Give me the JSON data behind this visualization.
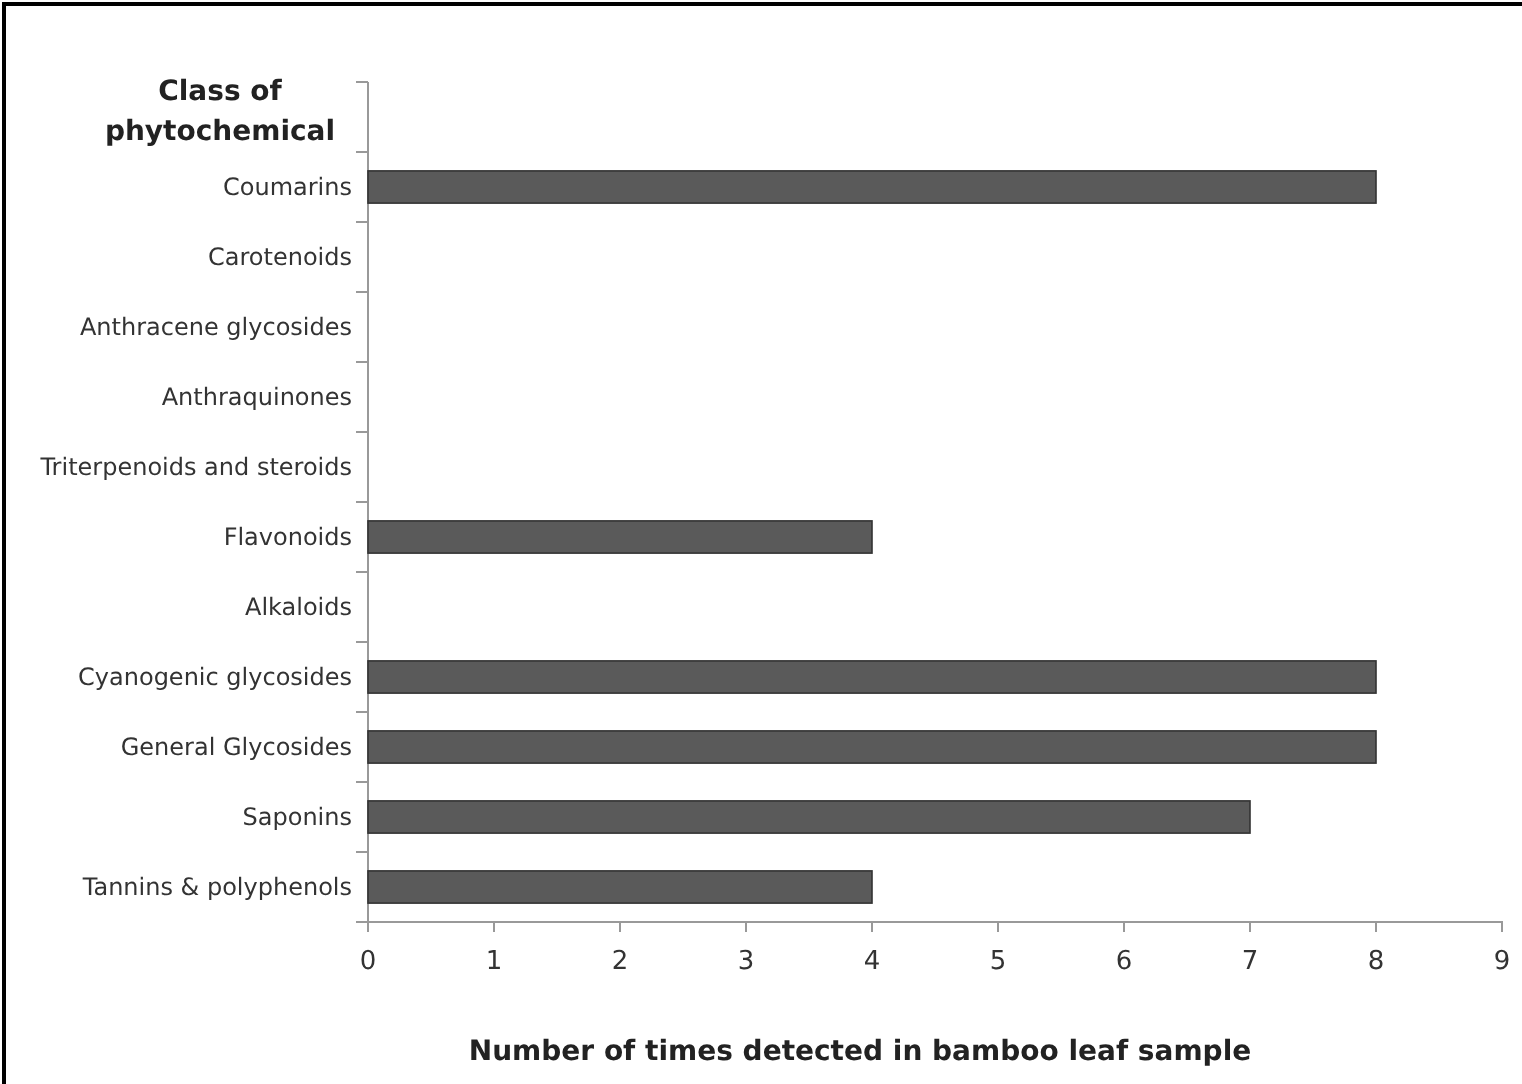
{
  "chart_data": {
    "type": "bar",
    "orientation": "horizontal",
    "ylabel": "Class of phytochemical",
    "xlabel": "Number of times detected in bamboo leaf sample",
    "categories": [
      "Coumarins",
      "Carotenoids",
      "Anthracene glycosides",
      "Anthraquinones",
      "Triterpenoids and steroids",
      "Flavonoids",
      "Alkaloids",
      "Cyanogenic glycosides",
      "General Glycosides",
      "Saponins",
      "Tannins & polyphenols"
    ],
    "values": [
      8,
      0,
      0,
      0,
      0,
      4,
      0,
      8,
      8,
      7,
      4
    ],
    "color": "#5a5a5a",
    "xlim": [
      0,
      9
    ],
    "xticks": [
      0,
      1,
      2,
      3,
      4,
      5,
      6,
      7,
      8,
      9
    ],
    "grid": false
  }
}
